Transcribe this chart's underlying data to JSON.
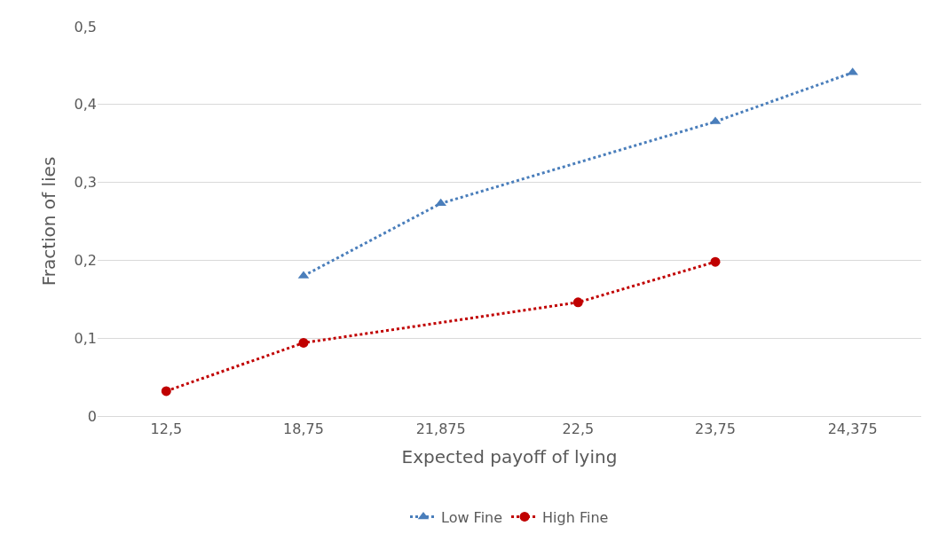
{
  "chart_data": {
    "type": "line",
    "xlabel": "Expected payoff of lying",
    "ylabel": "Fraction of lies",
    "categories": [
      "12,5",
      "18,75",
      "21,875",
      "22,5",
      "23,75",
      "24,375"
    ],
    "series": [
      {
        "name": "Low Fine",
        "color": "#4a7ebb",
        "marker": "triangle",
        "line_style": "dotted",
        "x": [
          "18,75",
          "21,875",
          "23,75",
          "24,375"
        ],
        "values": [
          0.18,
          0.273,
          0.378,
          0.441
        ]
      },
      {
        "name": "High Fine",
        "color": "#c00000",
        "marker": "circle",
        "line_style": "dotted",
        "x": [
          "12,5",
          "18,75",
          "22,5",
          "23,75"
        ],
        "values": [
          0.032,
          0.094,
          0.146,
          0.198
        ]
      }
    ],
    "ylim": [
      0,
      0.5
    ],
    "yticks": [
      {
        "value": 0,
        "label": "0"
      },
      {
        "value": 0.1,
        "label": "0,1"
      },
      {
        "value": 0.2,
        "label": "0,2"
      },
      {
        "value": 0.3,
        "label": "0,3"
      },
      {
        "value": 0.4,
        "label": "0,4"
      },
      {
        "value": 0.5,
        "label": "0,5"
      }
    ],
    "grid": "y",
    "legend": "bottom"
  }
}
